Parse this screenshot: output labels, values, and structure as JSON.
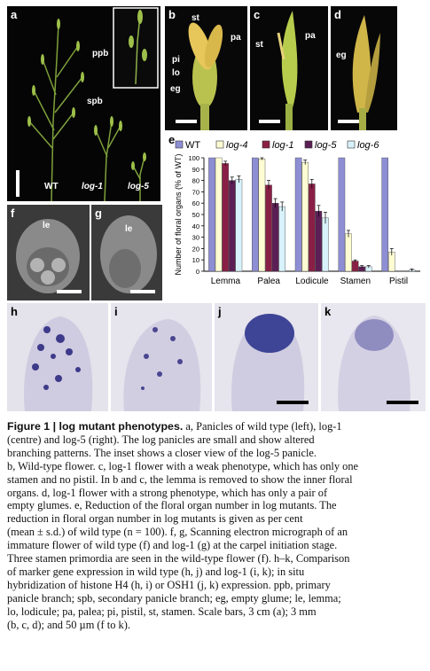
{
  "panels": {
    "a": {
      "label": "a",
      "annotations": {
        "ppb": "ppb",
        "spb": "spb",
        "wt": "WT",
        "log1": "log-1",
        "log5": "log-5"
      }
    },
    "b": {
      "label": "b",
      "annotations": {
        "st": "st",
        "pa": "pa",
        "pi": "pi",
        "lo": "lo",
        "eg": "eg"
      }
    },
    "c": {
      "label": "c",
      "annotations": {
        "st": "st",
        "pa": "pa"
      }
    },
    "d": {
      "label": "d",
      "annotations": {
        "eg": "eg"
      }
    },
    "e": {
      "label": "e"
    },
    "f": {
      "label": "f",
      "annotations": {
        "le": "le"
      }
    },
    "g": {
      "label": "g",
      "annotations": {
        "le": "le"
      }
    },
    "h": {
      "label": "h"
    },
    "i": {
      "label": "i"
    },
    "j": {
      "label": "j"
    },
    "k": {
      "label": "k"
    }
  },
  "colors": {
    "wt": "#8e8ed4",
    "log4": "#fdfcd2",
    "log1": "#8a1f45",
    "log5": "#5c1f55",
    "log6": "#d8f2fb"
  },
  "chart_data": {
    "type": "bar",
    "ylabel": "Number of floral organs (% of WT)",
    "ylim": [
      0,
      100
    ],
    "yticks": [
      "0",
      "10",
      "20",
      "30",
      "40",
      "50",
      "60",
      "70",
      "80",
      "90",
      "100"
    ],
    "categories": [
      "Lemma",
      "Palea",
      "Lodicule",
      "Stamen",
      "Pistil"
    ],
    "series": [
      {
        "name": "WT",
        "values": [
          100,
          100,
          100,
          100,
          100
        ]
      },
      {
        "name": "log-4",
        "values": [
          100,
          99,
          96,
          33,
          17
        ]
      },
      {
        "name": "log-1",
        "values": [
          95,
          76,
          77,
          9,
          0
        ]
      },
      {
        "name": "log-5",
        "values": [
          80,
          60,
          53,
          4,
          0
        ]
      },
      {
        "name": "log-6",
        "values": [
          81,
          57,
          47,
          4,
          1
        ]
      }
    ],
    "errors": [
      [
        0,
        0,
        0,
        0,
        0
      ],
      [
        0,
        1,
        2,
        3,
        3
      ],
      [
        2,
        4,
        4,
        1,
        0
      ],
      [
        3,
        4,
        5,
        1,
        0
      ],
      [
        3,
        4,
        5,
        1,
        1
      ]
    ]
  },
  "caption": {
    "title": "Figure 1 | log mutant phenotypes.",
    "lines": [
      "a, Panicles of wild type (left), log-1",
      "(centre) and log-5 (right). The log panicles are small and show altered",
      "branching patterns. The inset shows a closer view of the log-5 panicle.",
      "b, Wild-type flower. c, log-1 flower with a weak phenotype, which has only one",
      "stamen and no pistil. In b and c, the lemma is removed to show the inner floral",
      "organs. d, log-1 flower with a strong phenotype, which has only a pair of",
      "empty glumes. e, Reduction of the floral organ number in log mutants. The",
      "reduction in floral organ number in log mutants is given as per cent",
      "(mean ± s.d.) of wild type (n = 100). f, g, Scanning electron micrograph of an",
      "immature flower of wild type (f) and log-1 (g) at the carpel initiation stage.",
      "Three stamen primordia are seen in the wild-type flower (f). h–k, Comparison",
      "of marker gene expression in wild type (h, j) and log-1 (i, k); in situ",
      "hybridization of histone H4 (h, i) or OSH1 (j, k) expression. ppb, primary",
      "panicle branch; spb, secondary panicle branch; eg, empty glume; le, lemma;",
      "lo, lodicule; pa, palea; pi, pistil, st, stamen. Scale bars, 3 cm (a); 3 mm",
      "(b, c, d); and 50 µm (f to k)."
    ]
  }
}
